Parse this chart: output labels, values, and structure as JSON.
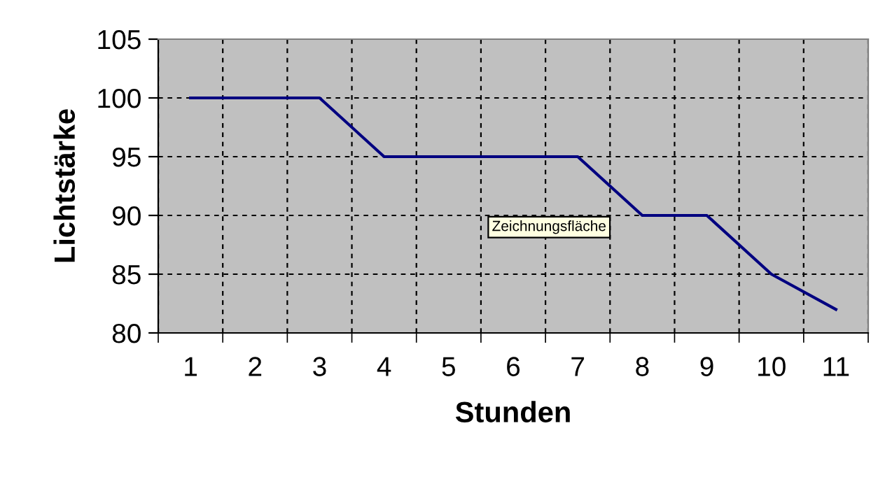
{
  "chart_data": {
    "type": "line",
    "xlabel": "Stunden",
    "ylabel": "Lichtstärke",
    "categories": [
      "1",
      "2",
      "3",
      "4",
      "5",
      "6",
      "7",
      "8",
      "9",
      "10",
      "11"
    ],
    "series": [
      {
        "color": "#000080",
        "values": [
          100,
          100,
          100,
          95,
          95,
          95,
          95,
          90,
          90,
          85,
          82
        ]
      }
    ],
    "ylim": [
      80,
      105
    ],
    "yticks": [
      80,
      85,
      90,
      95,
      100,
      105
    ],
    "grid": true,
    "line_style": "solid",
    "marker": "none",
    "annotations": [
      "Zeichnungsfläche"
    ]
  }
}
